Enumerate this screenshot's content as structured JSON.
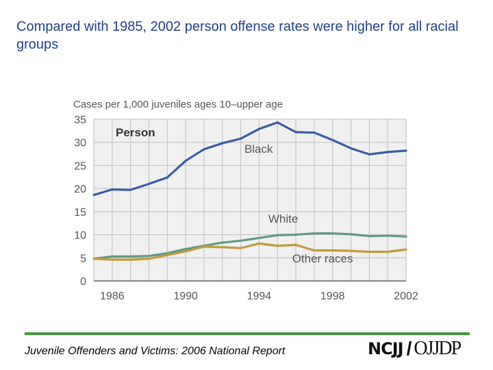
{
  "slide": {
    "title": "Compared with 1985, 2002 person offense rates were higher for all racial groups",
    "footer": "Juvenile Offenders and Victims: 2006 National Report",
    "logo_left": "NCJJ",
    "logo_right": "OJJDP"
  },
  "colors": {
    "title": "#1f3f86",
    "black_series": "#3a5da8",
    "white_series": "#5f9a86",
    "other_series": "#c49a3a",
    "grid": "#c6c6c6",
    "plot_bg": "#f0f0f0",
    "footer_rule": "#3f9a3a"
  },
  "chart_data": {
    "type": "line",
    "title": "Person",
    "ylabel": "Cases per 1,000 juveniles ages 10–upper age",
    "xlabel": "",
    "x": [
      1985,
      1986,
      1987,
      1988,
      1989,
      1990,
      1991,
      1992,
      1993,
      1994,
      1995,
      1996,
      1997,
      1998,
      1999,
      2000,
      2001,
      2002
    ],
    "xlim": [
      1985,
      2002
    ],
    "ylim": [
      0,
      35
    ],
    "xticks": [
      1986,
      1990,
      1994,
      1998,
      2002
    ],
    "yticks": [
      0,
      5,
      10,
      15,
      20,
      25,
      30,
      35
    ],
    "grid": true,
    "series": [
      {
        "name": "Black",
        "color": "#3a5da8",
        "values": [
          18.6,
          19.8,
          19.7,
          21.0,
          22.4,
          26.0,
          28.5,
          29.8,
          30.8,
          32.9,
          34.3,
          32.2,
          32.1,
          30.5,
          28.7,
          27.4,
          27.9,
          28.2
        ]
      },
      {
        "name": "White",
        "color": "#5f9a86",
        "values": [
          4.8,
          5.3,
          5.3,
          5.4,
          6.0,
          6.9,
          7.6,
          8.3,
          8.7,
          9.3,
          9.9,
          10.0,
          10.3,
          10.3,
          10.1,
          9.7,
          9.8,
          9.6
        ]
      },
      {
        "name": "Other races",
        "color": "#c49a3a",
        "values": [
          4.8,
          4.6,
          4.6,
          4.8,
          5.6,
          6.4,
          7.4,
          7.3,
          7.1,
          8.1,
          7.6,
          7.8,
          6.6,
          6.6,
          6.5,
          6.3,
          6.3,
          6.8
        ]
      }
    ],
    "annotations": [
      {
        "text": "Black",
        "x": 1993.2,
        "y": 27.7
      },
      {
        "text": "White",
        "x": 1994.5,
        "y": 12.6
      },
      {
        "text": "Other races",
        "x": 1995.8,
        "y": 4.0
      }
    ]
  }
}
